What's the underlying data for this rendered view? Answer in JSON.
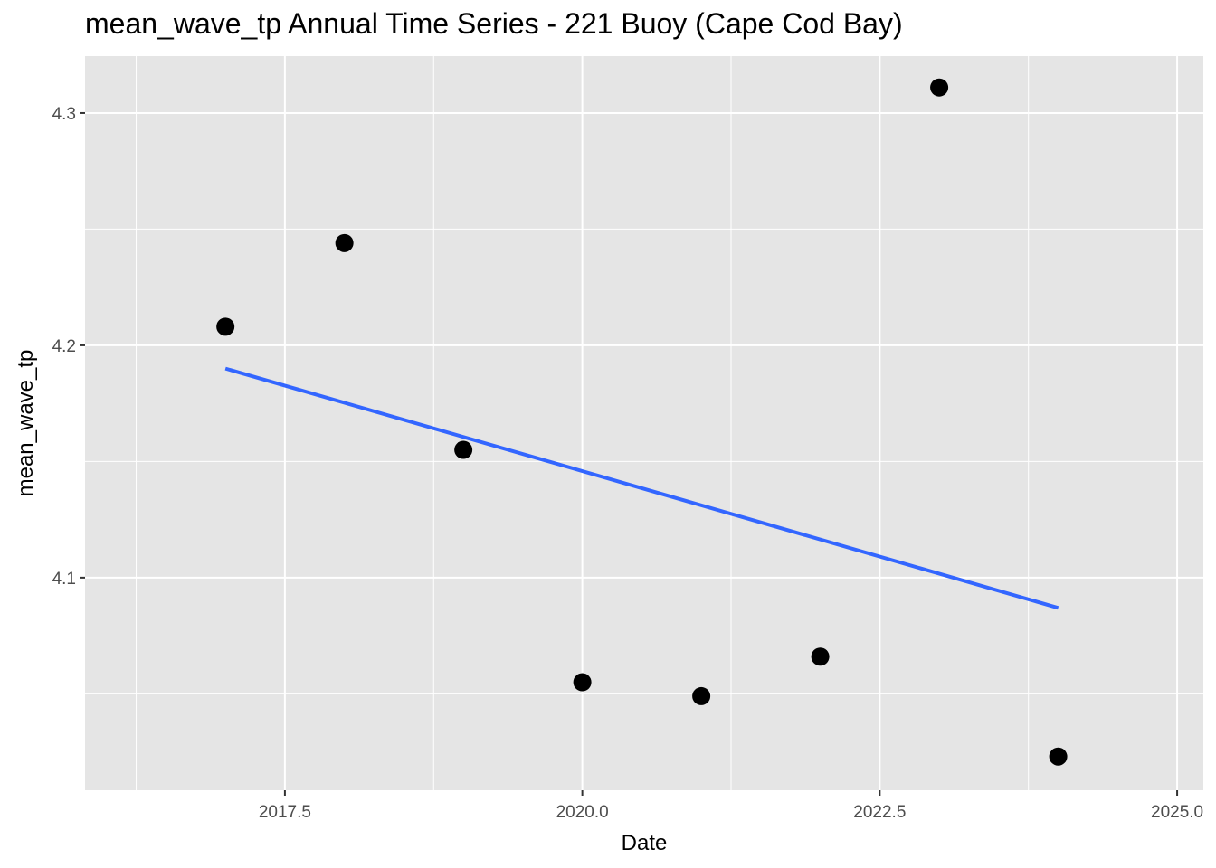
{
  "chart_data": {
    "type": "scatter",
    "title": "mean_wave_tp Annual Time Series - 221 Buoy (Cape Cod Bay)",
    "xlabel": "Date",
    "ylabel": "mean_wave_tp",
    "x": [
      2017,
      2018,
      2019,
      2020,
      2021,
      2022,
      2023,
      2024
    ],
    "y": [
      4.208,
      4.244,
      4.155,
      4.055,
      4.049,
      4.066,
      4.311,
      4.023
    ],
    "trend_line": {
      "x": [
        2017,
        2024
      ],
      "y": [
        4.19,
        4.087
      ],
      "color": "#3366ff"
    },
    "xlim": [
      2015.82,
      2025.22
    ],
    "ylim": [
      4.0085,
      4.3245
    ],
    "x_major_ticks": [
      2017.5,
      2020.0,
      2022.5,
      2025.0
    ],
    "x_tick_labels": [
      "2017.5",
      "2020.0",
      "2022.5",
      "2025.0"
    ],
    "x_minor_ticks": [
      2016.25,
      2018.75,
      2021.25,
      2023.75
    ],
    "y_major_ticks": [
      4.1,
      4.2,
      4.3
    ],
    "y_tick_labels": [
      "4.1",
      "4.2",
      "4.3"
    ],
    "y_minor_ticks": [
      4.05,
      4.15,
      4.25
    ],
    "grid": true,
    "point_color": "#000000",
    "panel_background": "#e5e5e5",
    "grid_color": "#ffffff"
  }
}
